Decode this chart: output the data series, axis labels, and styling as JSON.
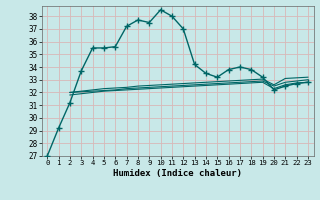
{
  "xlabel": "Humidex (Indice chaleur)",
  "bg_color": "#c8e8e8",
  "grid_color": "#aaaaaa",
  "line_color": "#006666",
  "xlim": [
    -0.5,
    23.5
  ],
  "ylim": [
    27,
    38.8
  ],
  "yticks": [
    27,
    28,
    29,
    30,
    31,
    32,
    33,
    34,
    35,
    36,
    37,
    38
  ],
  "xticks": [
    0,
    1,
    2,
    3,
    4,
    5,
    6,
    7,
    8,
    9,
    10,
    11,
    12,
    13,
    14,
    15,
    16,
    17,
    18,
    19,
    20,
    21,
    22,
    23
  ],
  "main_x": [
    0,
    1,
    2,
    3,
    4,
    5,
    6,
    7,
    8,
    9,
    10,
    11,
    12,
    13,
    14,
    15,
    16,
    17,
    18,
    19,
    20,
    21,
    22,
    23
  ],
  "main_y": [
    27.0,
    29.2,
    31.2,
    33.7,
    35.5,
    35.5,
    35.6,
    37.2,
    37.7,
    37.5,
    38.5,
    38.0,
    37.0,
    34.2,
    33.5,
    33.2,
    33.8,
    34.0,
    33.8,
    33.2,
    32.2,
    32.5,
    32.7,
    32.8
  ],
  "line2_x": [
    2,
    3,
    4,
    5,
    6,
    7,
    8,
    9,
    10,
    11,
    12,
    13,
    14,
    15,
    16,
    17,
    18,
    19,
    20,
    21,
    22,
    23
  ],
  "line2_y": [
    32.0,
    32.05,
    32.1,
    32.15,
    32.2,
    32.3,
    32.35,
    32.4,
    32.45,
    32.5,
    32.55,
    32.6,
    32.65,
    32.7,
    32.75,
    32.8,
    32.85,
    32.9,
    32.5,
    32.8,
    32.9,
    33.0
  ],
  "line3_x": [
    2,
    3,
    4,
    5,
    6,
    7,
    8,
    9,
    10,
    11,
    12,
    13,
    14,
    15,
    16,
    17,
    18,
    19,
    20,
    21,
    22,
    23
  ],
  "line3_y": [
    32.0,
    32.1,
    32.2,
    32.3,
    32.35,
    32.4,
    32.5,
    32.55,
    32.6,
    32.65,
    32.7,
    32.75,
    32.8,
    32.85,
    32.9,
    32.95,
    33.0,
    33.05,
    32.6,
    33.1,
    33.15,
    33.2
  ],
  "line4_x": [
    2,
    3,
    4,
    5,
    6,
    7,
    8,
    9,
    10,
    11,
    12,
    13,
    14,
    15,
    16,
    17,
    18,
    19,
    20,
    21,
    22,
    23
  ],
  "line4_y": [
    31.8,
    31.9,
    32.0,
    32.1,
    32.15,
    32.2,
    32.25,
    32.3,
    32.35,
    32.4,
    32.45,
    32.5,
    32.55,
    32.6,
    32.65,
    32.7,
    32.75,
    32.8,
    32.3,
    32.6,
    32.75,
    32.8
  ]
}
